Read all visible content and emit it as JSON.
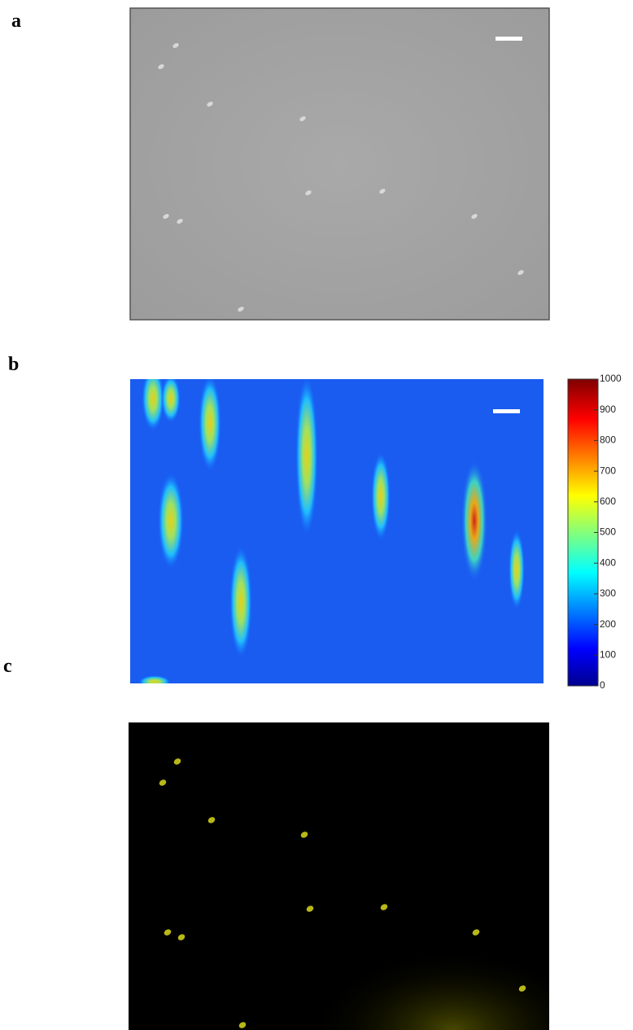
{
  "panels": [
    {
      "label": "a"
    },
    {
      "label": "b"
    },
    {
      "label": "c"
    }
  ],
  "colorbar": {
    "lim": [
      0,
      1000
    ],
    "ticks": [
      0,
      100,
      200,
      300,
      400,
      500,
      600,
      700,
      800,
      900,
      1000
    ]
  }
}
